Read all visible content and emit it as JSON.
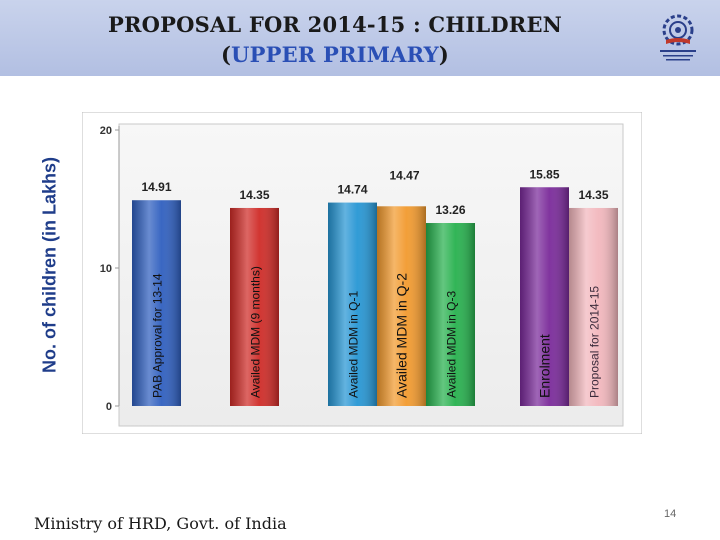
{
  "slide": {
    "title_prefix": "PROPOSAL FOR 2014-15 :  CHILDREN",
    "title_open": "(",
    "title_highlight": "UPPER PRIMARY",
    "title_close": ")",
    "footer": "Ministry of HRD, Govt. of India",
    "page_number": "14"
  },
  "chart_data": {
    "type": "bar",
    "ylabel": "No. of children (in Lakhs)",
    "ylim": [
      0,
      20
    ],
    "yticks": [
      0,
      10,
      20
    ],
    "grid": false,
    "categories": [
      "PAB Approval for 13-14",
      "Availed MDM (9 months)",
      "Availed MDM in Q-1",
      "Availed MDM in Q-2",
      "Availed MDM in Q-3",
      "Enrolment",
      "Proposal for 2014-15"
    ],
    "values": [
      14.91,
      14.35,
      14.74,
      14.47,
      13.26,
      15.85,
      14.35
    ],
    "value_labels": [
      "14.91",
      "14.35",
      "14.74",
      "14.47",
      "13.26",
      "15.85",
      "14.35"
    ],
    "colors": [
      "#2f5fbf",
      "#cf2b27",
      "#2696d4",
      "#f29a2e",
      "#27b14e",
      "#7a2a9a",
      "#f2b7bd"
    ]
  }
}
